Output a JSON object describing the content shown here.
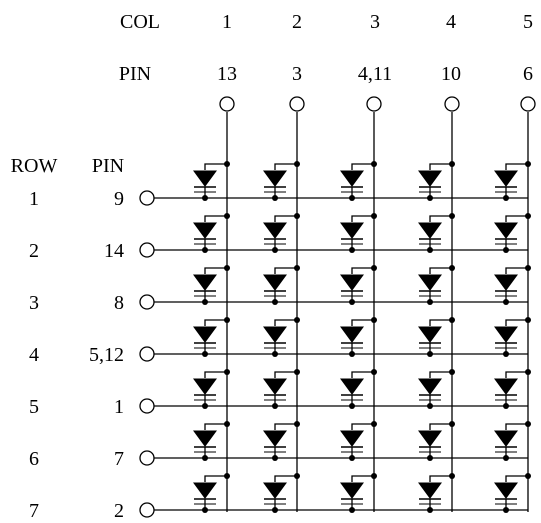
{
  "header": {
    "col_label": "COL",
    "pin_label": "PIN",
    "row_label": "ROW"
  },
  "columns": [
    {
      "col": "1",
      "pin": "13"
    },
    {
      "col": "2",
      "pin": "3"
    },
    {
      "col": "3",
      "pin": "4,11"
    },
    {
      "col": "4",
      "pin": "10"
    },
    {
      "col": "5",
      "pin": "6"
    }
  ],
  "rows": [
    {
      "row": "1",
      "pin": "9"
    },
    {
      "row": "2",
      "pin": "14"
    },
    {
      "row": "3",
      "pin": "8"
    },
    {
      "row": "4",
      "pin": "5,12"
    },
    {
      "row": "5",
      "pin": "1"
    },
    {
      "row": "6",
      "pin": "7"
    },
    {
      "row": "7",
      "pin": "2"
    }
  ],
  "colors": {
    "ink": "#000000",
    "paper": "#ffffff"
  }
}
